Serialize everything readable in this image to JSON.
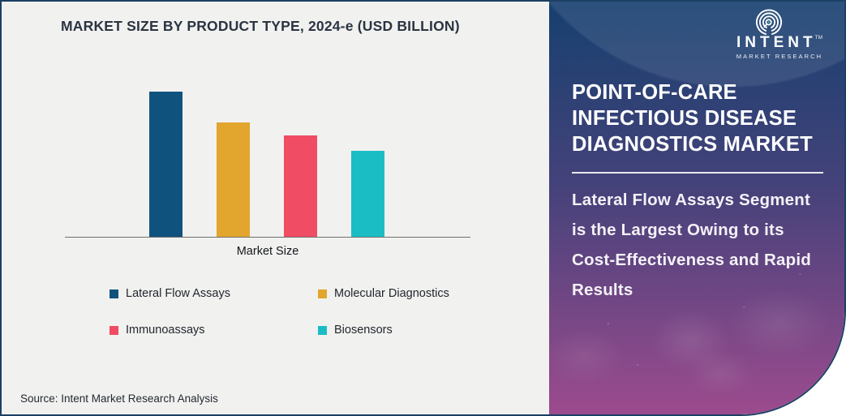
{
  "chart_data": {
    "type": "bar",
    "title": "MARKET SIZE BY PRODUCT TYPE, 2024-e (USD BILLION)",
    "xlabel": "Market Size",
    "ylabel": "",
    "categories": [
      "Lateral Flow Assays",
      "Molecular Diagnostics",
      "Immunoassays",
      "Biosensors"
    ],
    "values_relative_pct": [
      100,
      79,
      70,
      59
    ],
    "value_axis_shown": false,
    "data_labels_shown": false,
    "grid": false,
    "legend_position": "bottom",
    "bar_colors": [
      "#10527E",
      "#E2A52E",
      "#F04C63",
      "#1BBDC5"
    ]
  },
  "source_note": "Source: Intent Market Research Analysis",
  "panel": {
    "logo": {
      "brand": "INTENT",
      "trademark": "TM",
      "tagline": "MARKET RESEARCH"
    },
    "title": "POINT-OF-CARE INFECTIOUS DISEASE DIAGNOSTICS MARKET",
    "subtitle": "Lateral Flow Assays Segment is the Largest Owing to its Cost-Effectiveness and Rapid Results",
    "colors": {
      "gradient_top": "#16406F",
      "gradient_mid": "#45427A",
      "gradient_bottom": "#9C4B8E",
      "left_background": "#F1F1EF",
      "frame_border": "#1D4065"
    }
  }
}
